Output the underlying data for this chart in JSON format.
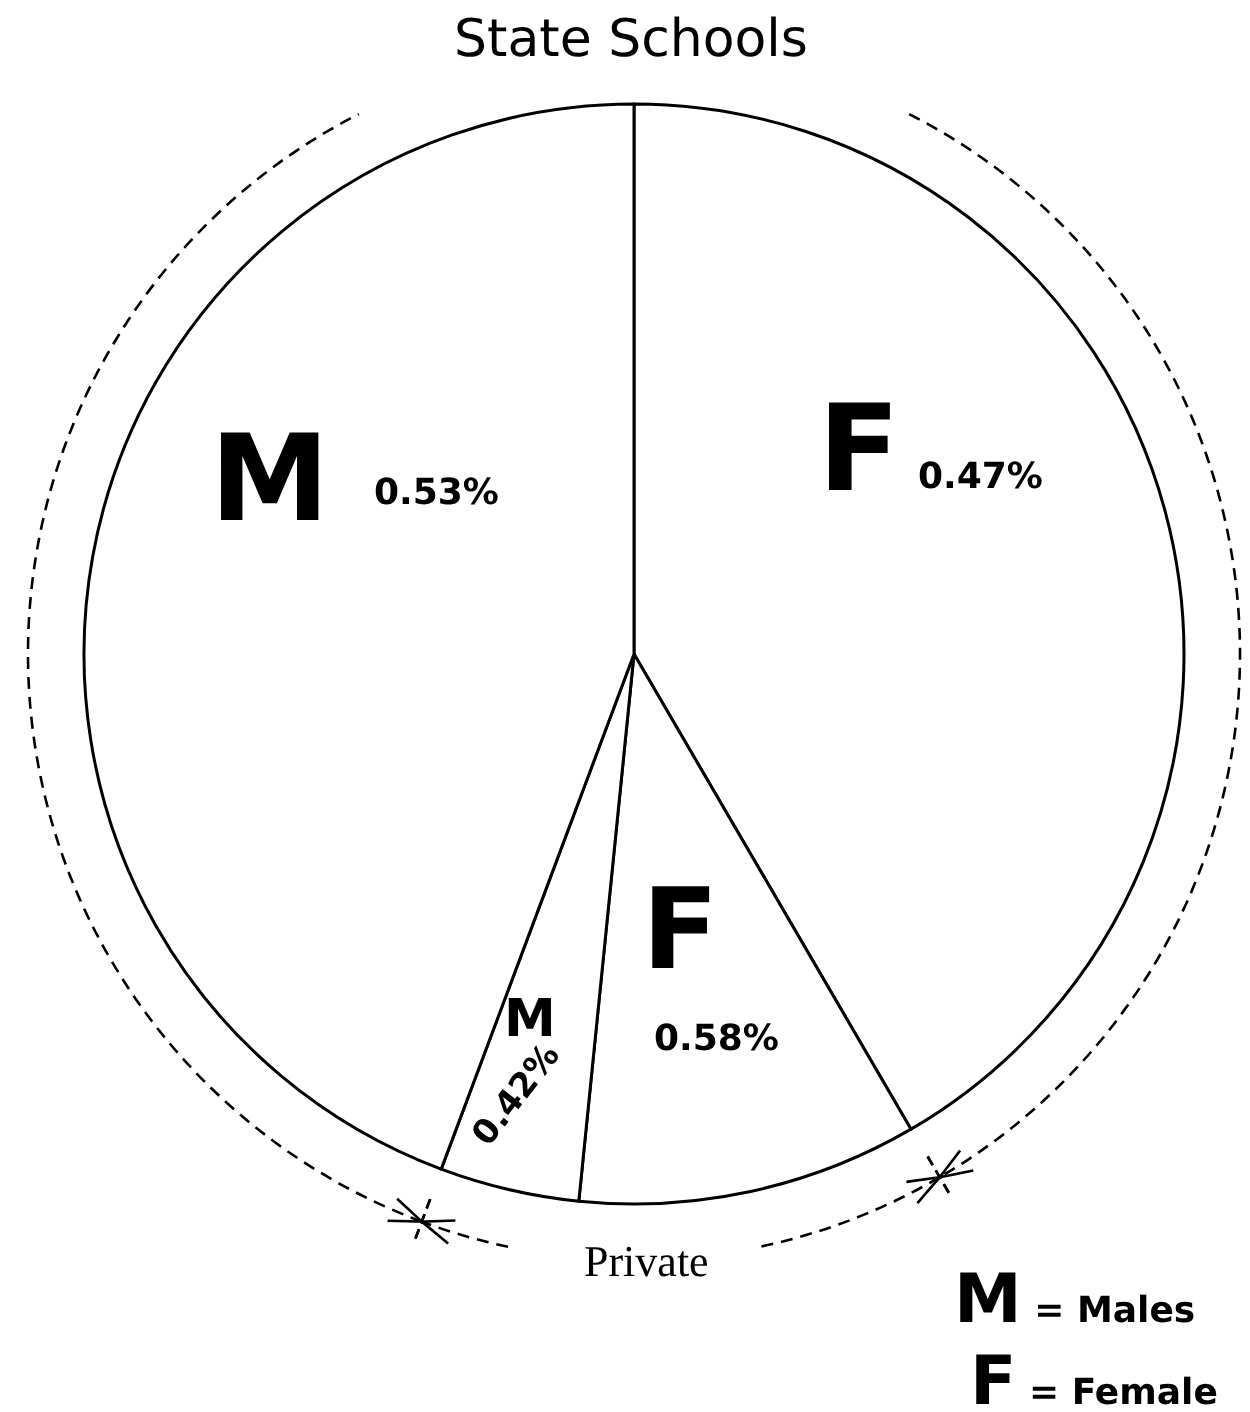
{
  "chart_data": {
    "type": "pie",
    "categories": [
      "F",
      "F",
      "M",
      "M"
    ],
    "values": [
      41.6,
      10.0,
      4.1,
      44.3
    ],
    "colors": [
      "#ffffff",
      "#ffffff",
      "#ffffff",
      "#ffffff"
    ],
    "annotations": [
      "State Schools",
      "Private",
      "M = Males",
      "F = Female",
      "0.47%",
      "0.58%",
      "0.42%",
      "0.53%"
    ]
  }
}
